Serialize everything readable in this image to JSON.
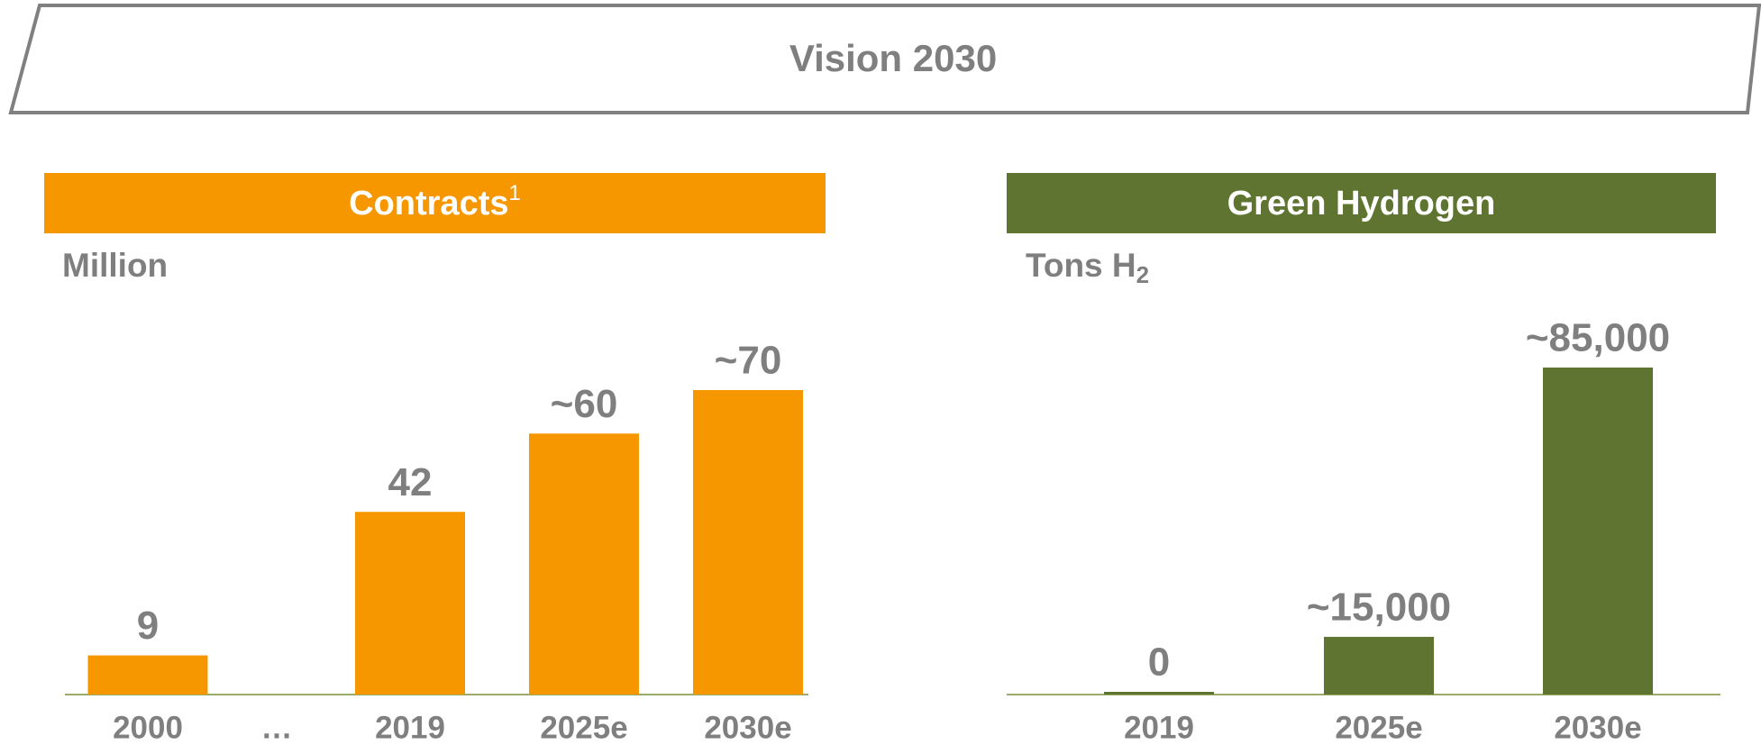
{
  "title": "Vision 2030",
  "chart_data": [
    {
      "type": "bar",
      "title": "Contracts",
      "title_superscript": "1",
      "y_label": "Million",
      "categories": [
        "2000",
        "…",
        "2019",
        "2025e",
        "2030e"
      ],
      "values": [
        9,
        null,
        42,
        60,
        70
      ],
      "value_labels": [
        "9",
        null,
        "42",
        "~60",
        "~70"
      ],
      "color": "#f79700",
      "header_color": "#f79700"
    },
    {
      "type": "bar",
      "title": "Green Hydrogen",
      "y_label": "Tons H",
      "y_label_subscript": "2",
      "categories": [
        "2019",
        "2025e",
        "2030e"
      ],
      "values": [
        0,
        15000,
        85000
      ],
      "value_labels": [
        "0",
        "~15,000",
        "~85,000"
      ],
      "color": "#5e7430",
      "header_color": "#5e7430"
    }
  ]
}
